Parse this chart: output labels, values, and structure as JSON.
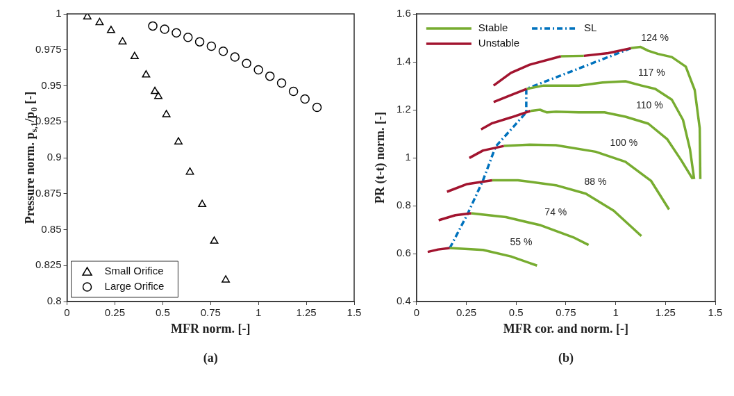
{
  "chart_data": [
    {
      "type": "scatter",
      "xlabel": "MFR norm. [-]",
      "ylabel": "Pressure norm. p$_{s,1}$/p$_{0}$ [-]",
      "xlim": [
        0,
        1.5
      ],
      "ylim": [
        0.8,
        1
      ],
      "xticks": [
        0,
        0.25,
        0.5,
        0.75,
        1,
        1.25,
        1.5
      ],
      "yticks": [
        0.8,
        0.825,
        0.85,
        0.875,
        0.9,
        0.925,
        0.95,
        0.975,
        1
      ],
      "legend": "bottom left",
      "annotations": [
        "(a)"
      ],
      "series": [
        {
          "name": "Small Orifice",
          "color": "#000000",
          "marker": "triangle",
          "x": [
            0.106,
            0.17,
            0.23,
            0.29,
            0.353,
            0.413,
            0.459,
            0.477,
            0.519,
            0.582,
            0.642,
            0.706,
            0.769,
            0.829
          ],
          "values": [
            0.998,
            0.994,
            0.9885,
            0.9806,
            0.9704,
            0.9576,
            0.9461,
            0.9426,
            0.93,
            0.911,
            0.89,
            0.8675,
            0.842,
            0.815
          ]
        },
        {
          "name": "Large Orifice",
          "color": "#000000",
          "marker": "circle",
          "x": [
            0.448,
            0.51,
            0.571,
            0.632,
            0.693,
            0.754,
            0.816,
            0.877,
            0.938,
            1,
            1.06,
            1.121,
            1.183,
            1.243,
            1.306
          ],
          "values": [
            0.9916,
            0.9894,
            0.9868,
            0.9837,
            0.9806,
            0.9775,
            0.974,
            0.97,
            0.9656,
            0.9611,
            0.9567,
            0.9519,
            0.9461,
            0.9408,
            0.935
          ]
        }
      ]
    },
    {
      "type": "line",
      "xlabel": "MFR cor. and norm. [-]",
      "ylabel": "PR (t-t) norm. [-]",
      "xlim": [
        0,
        1.5
      ],
      "ylim": [
        0.4,
        1.6
      ],
      "xticks": [
        0,
        0.25,
        0.5,
        0.75,
        1,
        1.25,
        1.5
      ],
      "yticks": [
        0.4,
        0.6,
        0.8,
        1,
        1.2,
        1.4,
        1.6
      ],
      "legend": "top left",
      "annotations": [
        "(b)",
        "55 %",
        "74 %",
        "88 %",
        "100 %",
        "110 %",
        "117 %",
        "124 %"
      ],
      "series": [
        {
          "name": "Stable",
          "color": "#77ac30",
          "line_style": "solid",
          "x": [
            0.167,
            0.334,
            0.474,
            0.605,
            null,
            0.275,
            0.449,
            0.624,
            0.787,
            0.864,
            null,
            0.38,
            0.509,
            0.7,
            0.85,
            0.99,
            1.129,
            null,
            0.439,
            0.568,
            0.7,
            0.899,
            1.049,
            1.178,
            1.268,
            null,
            0.571,
            0.62,
            0.655,
            0.7,
            0.815,
            0.944,
            1.049,
            1.164,
            1.258,
            1.328,
            1.387,
            null,
            0.554,
            0.638,
            0.815,
            0.934,
            1.049,
            1.129,
            1.199,
            1.282,
            1.338,
            1.373,
            1.394,
            null,
            0.725,
            0.84,
            null,
            1.077,
            1.125,
            1.164,
            1.213,
            1.282,
            1.352,
            1.397,
            1.422,
            1.425
          ],
          "values": [
            0.623,
            0.615,
            0.588,
            0.55,
            null,
            0.768,
            0.752,
            0.718,
            0.668,
            0.636,
            null,
            0.906,
            0.906,
            0.885,
            0.85,
            0.779,
            0.673,
            null,
            1.049,
            1.054,
            1.052,
            1.025,
            0.983,
            0.903,
            0.784,
            null,
            1.195,
            1.2,
            1.189,
            1.192,
            1.189,
            1.189,
            1.171,
            1.142,
            1.078,
            0.991,
            0.911,
            null,
            1.287,
            1.301,
            1.301,
            1.314,
            1.319,
            1.301,
            1.287,
            1.242,
            1.158,
            1.036,
            0.911,
            null,
            1.423,
            1.425,
            null,
            1.457,
            1.462,
            1.446,
            1.433,
            1.42,
            1.38,
            1.282,
            1.123,
            0.911
          ]
        },
        {
          "name": "Unstable",
          "color": "#a2142f",
          "line_style": "solid",
          "x": [
            0.056,
            0.108,
            0.167,
            null,
            0.111,
            0.195,
            0.275,
            null,
            0.153,
            0.254,
            0.38,
            null,
            0.265,
            0.334,
            0.439,
            null,
            0.324,
            0.38,
            0.474,
            0.571,
            null,
            0.387,
            0.474,
            0.554,
            null,
            0.387,
            0.474,
            0.568,
            0.725,
            null,
            0.84,
            0.962,
            1.077
          ],
          "values": [
            0.607,
            0.617,
            0.623,
            null,
            0.739,
            0.76,
            0.768,
            null,
            0.858,
            0.89,
            0.906,
            null,
            0.999,
            1.03,
            1.049,
            null,
            1.118,
            1.144,
            1.168,
            1.195,
            null,
            1.232,
            1.261,
            1.287,
            null,
            1.301,
            1.354,
            1.388,
            1.423,
            null,
            1.425,
            1.436,
            1.457
          ]
        },
        {
          "name": "SL",
          "color": "#0072bd",
          "line_style": "dashed",
          "x": [
            0.167,
            0.258,
            0.334,
            0.397,
            0.551,
            0.551,
            1.077
          ],
          "values": [
            0.623,
            0.768,
            0.906,
            1.046,
            1.189,
            1.287,
            1.457
          ]
        }
      ]
    }
  ]
}
